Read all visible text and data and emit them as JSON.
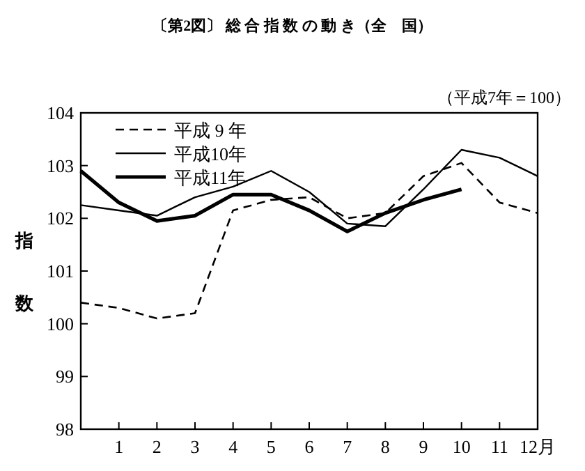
{
  "chart_data": {
    "type": "line",
    "title": "〔第2図〕 総 合 指 数 の 動 き（全　国）",
    "ylabel": "指数",
    "annotations": [
      "（平成7年＝100）"
    ],
    "x": [
      0,
      1,
      2,
      3,
      4,
      5,
      6,
      7,
      8,
      9,
      10,
      11,
      12
    ],
    "xlim": [
      0,
      12
    ],
    "xticks": [
      1,
      2,
      3,
      4,
      5,
      6,
      7,
      8,
      9,
      10,
      11,
      {
        "value": 12,
        "label": "12月"
      }
    ],
    "ylim": [
      98,
      104
    ],
    "yticks": [
      98,
      99,
      100,
      101,
      102,
      103,
      104
    ],
    "legend": "top left",
    "grid": false,
    "marker": "none",
    "series": [
      {
        "name": "平成 9 年",
        "color": "#000000",
        "line_style": "dashed",
        "values": [
          100.4,
          100.3,
          100.1,
          100.2,
          102.15,
          102.35,
          102.4,
          102.0,
          102.1,
          102.8,
          103.05,
          102.3,
          102.1
        ]
      },
      {
        "name": "平成10年",
        "color": "#000000",
        "line_style": "solid",
        "values": [
          102.25,
          102.15,
          102.05,
          102.4,
          102.6,
          102.9,
          102.5,
          101.9,
          101.85,
          102.55,
          103.3,
          103.15,
          102.8
        ]
      },
      {
        "name": "平成11年",
        "color": "#000000",
        "line_style": "solid",
        "values": [
          102.9,
          102.3,
          101.95,
          102.05,
          102.45,
          102.45,
          102.15,
          101.75,
          102.1,
          102.35,
          102.55,
          null,
          null
        ]
      }
    ]
  }
}
